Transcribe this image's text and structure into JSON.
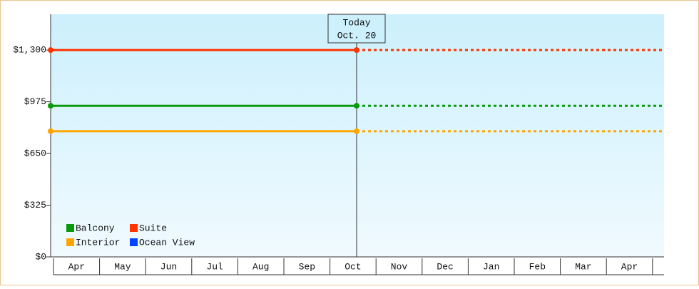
{
  "chart_data": {
    "type": "line",
    "annotation": {
      "title": "Today",
      "date": "Oct. 20"
    },
    "categories": [
      "Apr",
      "May",
      "Jun",
      "Jul",
      "Aug",
      "Sep",
      "Oct",
      "Nov",
      "Dec",
      "Jan",
      "Feb",
      "Mar",
      "Apr"
    ],
    "series": [
      {
        "name": "Balcony",
        "color": "#0a990a",
        "value": 950
      },
      {
        "name": "Suite",
        "color": "#ff3300",
        "value": 1300
      },
      {
        "name": "Interior",
        "color": "#ffa500",
        "value": 790
      },
      {
        "name": "Ocean View",
        "color": "#0044ff",
        "value": null
      }
    ],
    "ylim": [
      0,
      1525
    ],
    "yticks": [
      {
        "value": 0,
        "label": "$0"
      },
      {
        "value": 325,
        "label": "$325"
      },
      {
        "value": 650,
        "label": "$650"
      },
      {
        "value": 975,
        "label": "$975"
      },
      {
        "value": 1300,
        "label": "$1,300"
      }
    ]
  }
}
